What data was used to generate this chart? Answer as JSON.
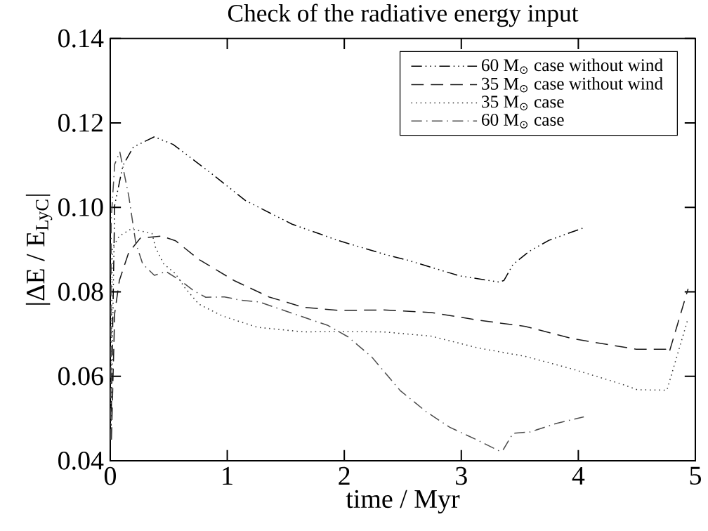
{
  "chart_data": {
    "type": "line",
    "title": "Check of the radiative energy input",
    "xlabel": "time / Myr",
    "ylabel": "|ΔE / E$_{LyC}$|",
    "xlim": [
      0,
      5
    ],
    "ylim": [
      0.04,
      0.14
    ],
    "xticks": [
      0,
      1,
      2,
      3,
      4,
      5
    ],
    "yticks": [
      {
        "value": 0.04,
        "label": "0.04"
      },
      {
        "value": 0.06,
        "label": "0.06"
      },
      {
        "value": 0.08,
        "label": "0.08"
      },
      {
        "value": 0.1,
        "label": "0.10"
      },
      {
        "value": 0.12,
        "label": "0.12"
      },
      {
        "value": 0.14,
        "label": "0.14"
      }
    ],
    "legend": "top right",
    "grid": false,
    "marker": "none",
    "series": [
      {
        "name": "60 M$_{⊙}$ case without wind",
        "color": "#000000",
        "line_style": "dashdotdot",
        "x": [
          0.005,
          0.038,
          0.108,
          0.198,
          0.377,
          0.537,
          0.856,
          1.156,
          1.555,
          1.954,
          2.353,
          2.539,
          2.982,
          3.325,
          3.365,
          3.442,
          3.587,
          3.749,
          3.95,
          4.051
        ],
        "values": [
          0.045,
          0.1005,
          0.1099,
          0.1143,
          0.1167,
          0.1149,
          0.1082,
          0.1016,
          0.096,
          0.0921,
          0.0888,
          0.0875,
          0.0838,
          0.0823,
          0.0827,
          0.0865,
          0.0897,
          0.0922,
          0.0942,
          0.0952
        ]
      },
      {
        "name": "35 M$_{⊙}$ case without wind",
        "color": "#1a1a1a",
        "line_style": "dashed",
        "x": [
          0.01,
          0.038,
          0.078,
          0.158,
          0.257,
          0.437,
          0.557,
          0.756,
          1.056,
          1.355,
          1.655,
          1.954,
          2.337,
          2.741,
          3.144,
          3.547,
          3.95,
          4.495,
          4.747,
          4.76,
          4.781,
          4.938
        ],
        "values": [
          0.045,
          0.0749,
          0.0827,
          0.0893,
          0.0927,
          0.0932,
          0.0921,
          0.0877,
          0.0827,
          0.0788,
          0.0763,
          0.0756,
          0.0757,
          0.0751,
          0.0733,
          0.0718,
          0.0689,
          0.0664,
          0.0664,
          0.0655,
          0.0661,
          0.0807
        ]
      },
      {
        "name": "35 M$_{⊙}$ case",
        "color": "#333333",
        "line_style": "dotted",
        "x": [
          0.005,
          0.018,
          0.078,
          0.178,
          0.357,
          0.387,
          0.457,
          0.557,
          0.637,
          0.756,
          0.956,
          1.256,
          1.655,
          1.934,
          2.337,
          2.741,
          3.144,
          3.547,
          3.95,
          4.353,
          4.505,
          4.757,
          4.938
        ],
        "values": [
          0.045,
          0.0904,
          0.0932,
          0.0949,
          0.0938,
          0.0905,
          0.0866,
          0.0843,
          0.081,
          0.0771,
          0.0743,
          0.0716,
          0.0705,
          0.0706,
          0.0705,
          0.0695,
          0.0667,
          0.0647,
          0.0617,
          0.0583,
          0.0568,
          0.0567,
          0.0737
        ]
      },
      {
        "name": "60 M$_{⊙}$ case",
        "color": "#4d4d4d",
        "line_style": "dashdot",
        "x": [
          0.005,
          0.008,
          0.038,
          0.082,
          0.158,
          0.218,
          0.277,
          0.377,
          0.477,
          0.597,
          0.717,
          0.816,
          0.976,
          1.116,
          1.275,
          1.555,
          1.855,
          2.034,
          2.237,
          2.478,
          2.7,
          2.902,
          3.144,
          3.325,
          3.356,
          3.442,
          3.587,
          3.809,
          4.047
        ],
        "values": [
          0.045,
          0.0971,
          0.1102,
          0.1131,
          0.1027,
          0.0916,
          0.0866,
          0.0839,
          0.0848,
          0.0827,
          0.0802,
          0.0787,
          0.0788,
          0.078,
          0.0776,
          0.0749,
          0.0721,
          0.0693,
          0.0645,
          0.0566,
          0.0516,
          0.0479,
          0.0448,
          0.0423,
          0.0425,
          0.0465,
          0.0468,
          0.0488,
          0.0504
        ]
      }
    ]
  }
}
